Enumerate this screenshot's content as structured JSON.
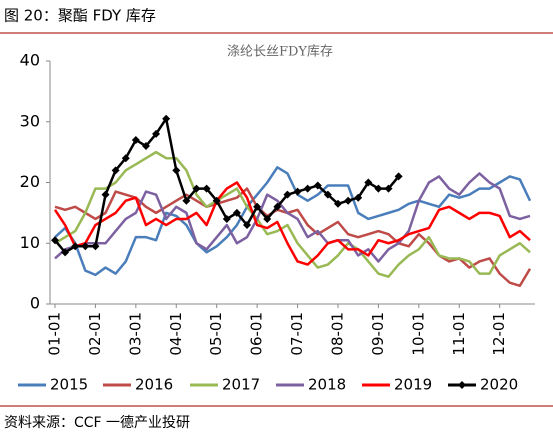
{
  "header": "图 20：聚酯 FDY 库存",
  "source": "资料来源：CCF 一德产业投研",
  "chart_data": {
    "type": "line",
    "title": "涤纶长丝FDY库存",
    "categories": [
      "01-01",
      null,
      null,
      null,
      "02-01",
      null,
      null,
      null,
      "03-01",
      null,
      null,
      null,
      "04-01",
      null,
      null,
      null,
      "05-01",
      null,
      null,
      null,
      "06-01",
      null,
      null,
      null,
      "07-01",
      null,
      null,
      null,
      "08-01",
      null,
      null,
      null,
      "09-01",
      null,
      null,
      null,
      "10-01",
      null,
      null,
      null,
      "11-01",
      null,
      null,
      null,
      "12-01",
      null,
      null,
      null
    ],
    "ylim": [
      0,
      40
    ],
    "yticks": [
      0,
      10,
      20,
      30,
      40
    ],
    "grid": false,
    "legend": "bottom",
    "series": [
      {
        "name": "2015",
        "color": "#4a7ebb",
        "marker": false,
        "values": [
          11,
          12.5,
          10,
          5.5,
          4.8,
          6,
          5,
          7,
          11,
          11,
          10.5,
          15,
          14.5,
          13,
          10,
          8.5,
          9.5,
          11,
          13,
          16,
          18,
          20,
          22.5,
          21.5,
          18,
          17,
          18,
          19.5,
          19.5,
          19.5,
          15,
          14,
          14.5,
          15,
          15.5,
          16.5,
          17,
          16.5,
          16,
          18,
          17.5,
          18,
          19,
          19,
          20,
          21,
          20.5,
          17
        ]
      },
      {
        "name": "2016",
        "color": "#be4b48",
        "marker": false,
        "values": [
          16,
          15.5,
          16,
          15,
          14,
          15,
          18.5,
          18,
          17.5,
          16,
          15,
          16,
          17,
          18,
          17,
          16,
          16.5,
          17,
          17.5,
          19,
          16,
          14.5,
          15.5,
          15,
          15.5,
          13,
          11.5,
          12.5,
          13.5,
          11.5,
          11,
          11.5,
          12,
          11.5,
          10,
          9.5,
          11.5,
          10,
          8,
          7,
          7.5,
          6,
          7,
          7.5,
          5,
          3.5,
          3,
          5.8
        ]
      },
      {
        "name": "2017",
        "color": "#98b954",
        "marker": false,
        "values": [
          10,
          11,
          12,
          15,
          19,
          19,
          20,
          22,
          23,
          24,
          25,
          24,
          24,
          22,
          18,
          16,
          17,
          18,
          19,
          16,
          14,
          11.5,
          12,
          13,
          10,
          8,
          6,
          6.5,
          8,
          10,
          9,
          7,
          5,
          4.5,
          6.5,
          8,
          9,
          11,
          8,
          7.5,
          7.5,
          7,
          5,
          5,
          8,
          9,
          10,
          8.5
        ]
      },
      {
        "name": "2018",
        "color": "#7d60a0",
        "marker": false,
        "values": [
          7.5,
          9,
          9.5,
          10,
          10,
          10,
          12,
          14,
          15,
          18.5,
          18,
          14,
          16,
          15,
          10,
          9,
          11,
          13,
          10,
          11,
          14,
          18,
          17,
          15,
          14,
          11,
          12,
          10,
          10.5,
          10.5,
          8,
          9,
          7,
          9,
          10,
          12,
          17,
          20,
          21,
          19,
          18,
          20,
          21.5,
          20,
          19,
          14.5,
          14,
          14.5
        ]
      },
      {
        "name": "2019",
        "color": "#ff0000",
        "marker": false,
        "values": [
          15.5,
          13,
          9.5,
          10,
          13,
          14,
          15,
          17,
          17.5,
          13,
          14,
          13,
          14,
          14,
          15,
          13,
          17,
          19,
          20,
          17.5,
          13,
          12.5,
          13.5,
          10,
          7,
          6.5,
          8,
          10,
          10.5,
          9,
          9,
          8,
          10.5,
          10,
          10.5,
          11.5,
          12,
          12.5,
          15.5,
          16,
          15,
          14,
          15,
          15,
          14.5,
          11,
          12,
          10.5
        ]
      },
      {
        "name": "2020",
        "color": "#000000",
        "marker": true,
        "values": [
          10.5,
          8.5,
          9.5,
          9.5,
          9.5,
          18,
          22,
          24,
          27,
          26,
          28,
          30.5,
          22,
          17,
          19,
          19,
          17,
          14,
          15,
          13,
          16,
          14,
          16,
          18,
          18.5,
          19,
          19.5,
          18,
          16.5,
          17,
          17.5,
          20,
          19,
          19,
          21,
          null,
          null,
          null,
          null,
          null,
          null,
          null,
          null,
          null,
          null,
          null,
          null,
          null
        ]
      }
    ]
  }
}
